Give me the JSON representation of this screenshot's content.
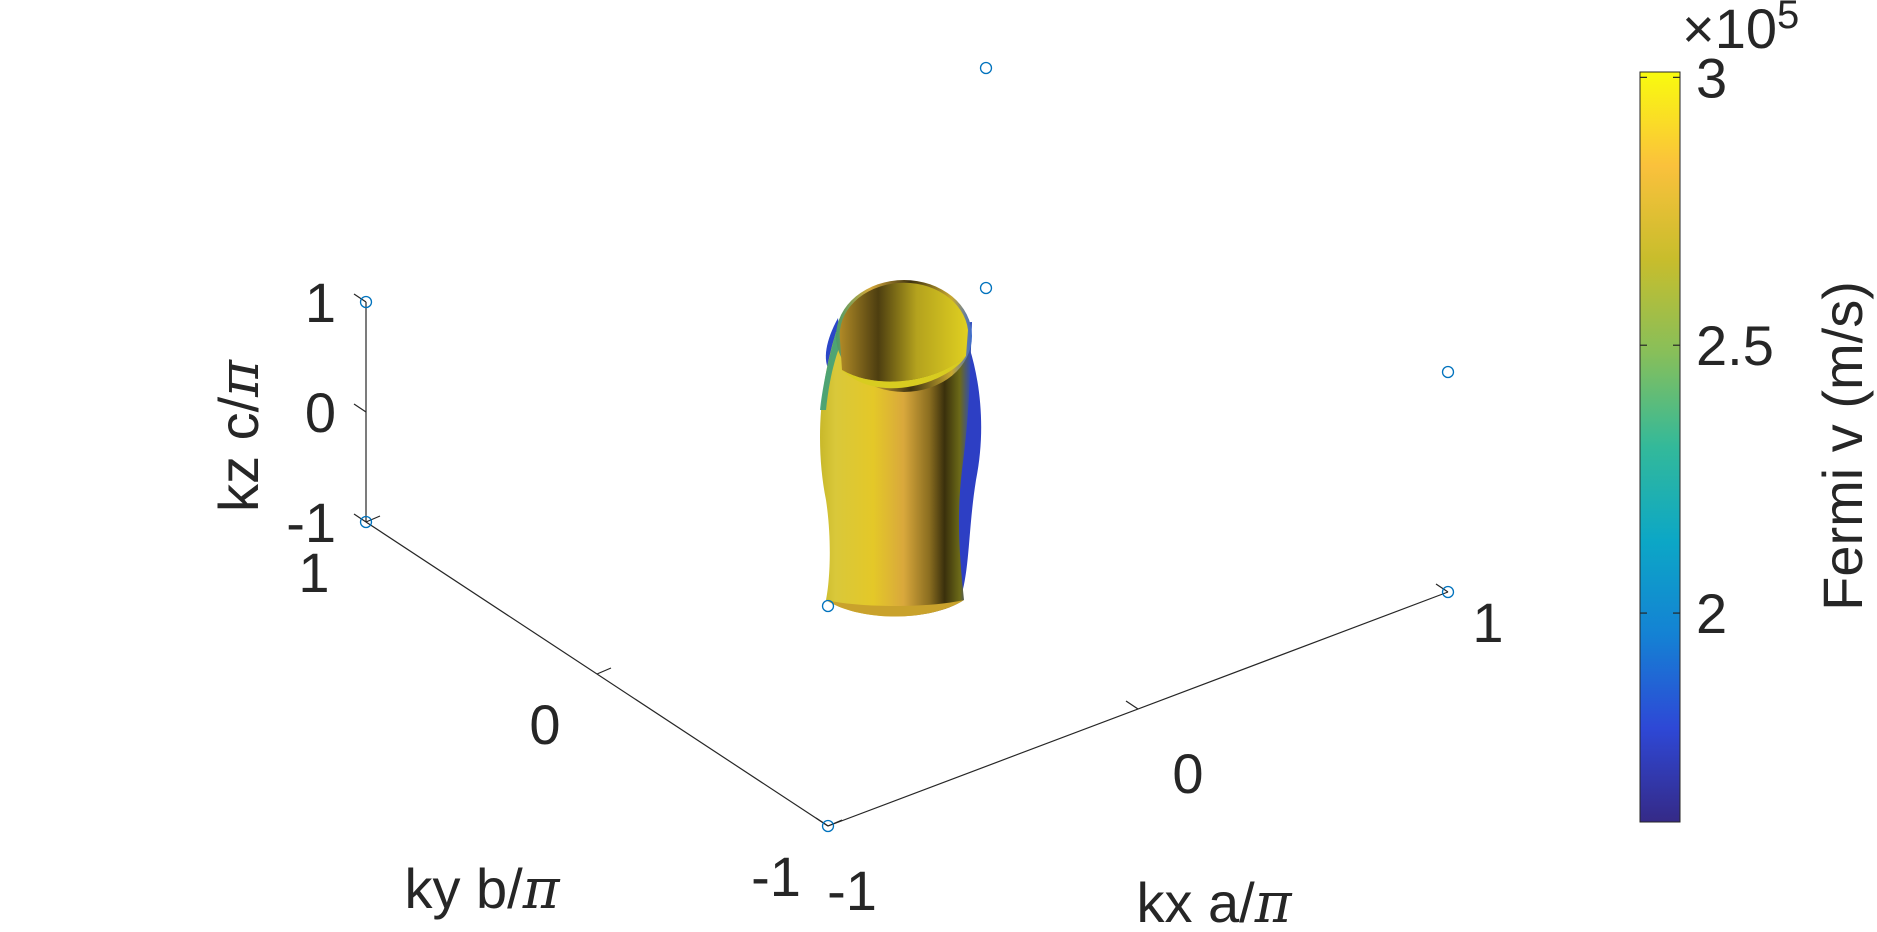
{
  "chart_data": {
    "type": "scatter",
    "subtype": "3d-fermi-surface",
    "axes": {
      "x": {
        "label": "kx a/",
        "symbol": "π",
        "ticks": [
          "-1",
          "0",
          "1"
        ],
        "lim": [
          -1,
          1
        ]
      },
      "y": {
        "label": "ky b/",
        "symbol": "π",
        "ticks": [
          "-1",
          "0",
          "1"
        ],
        "lim": [
          -1,
          1
        ]
      },
      "z": {
        "label": "kz c/",
        "symbol": "π",
        "ticks": [
          "-1",
          "0",
          "1"
        ],
        "lim": [
          -1,
          1
        ]
      }
    },
    "grid": false,
    "corner_markers": [
      {
        "x": -1,
        "y": -1,
        "z": -1
      },
      {
        "x": 1,
        "y": -1,
        "z": -1
      },
      {
        "x": -1,
        "y": 1,
        "z": -1
      },
      {
        "x": 1,
        "y": 1,
        "z": -1
      },
      {
        "x": -1,
        "y": -1,
        "z": 1
      },
      {
        "x": 1,
        "y": -1,
        "z": 1
      },
      {
        "x": -1,
        "y": 1,
        "z": 1
      },
      {
        "x": 1,
        "y": 1,
        "z": 1
      }
    ],
    "marker_color": "#0072bd",
    "surface": {
      "shape": "warped cylinder along kz",
      "colors": [
        "#d8d41a",
        "#e0a838",
        "#5a4a10",
        "#2040c0"
      ]
    },
    "colorbar": {
      "label": "Fermi v (m/s)",
      "exponent_label": "×10",
      "exponent": "5",
      "ticks": [
        "2",
        "2.5",
        "3"
      ],
      "tick_values": [
        2.0,
        2.5,
        3.0
      ],
      "range": [
        1.61,
        3.01
      ],
      "colormap": "parula",
      "stops": [
        "#352a87",
        "#2e48d6",
        "#1482d4",
        "#0ca7c6",
        "#33b99a",
        "#87bf5a",
        "#c8bd2c",
        "#fac13c",
        "#f9fb0e"
      ]
    }
  }
}
